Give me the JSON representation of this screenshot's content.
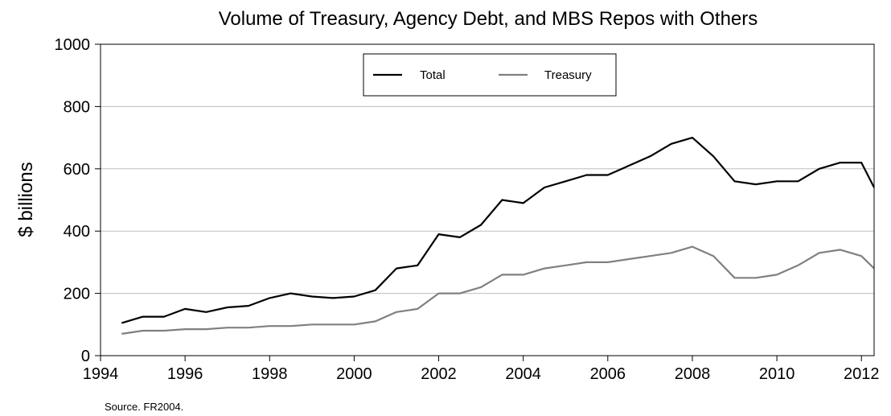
{
  "chart_data": {
    "type": "line",
    "title": "Volume of Treasury, Agency Debt, and MBS Repos with Others",
    "xlabel": "",
    "ylabel": "$ billions",
    "xlim": [
      1994.0,
      2012.3
    ],
    "ylim": [
      0,
      1000
    ],
    "x_ticks": [
      "1994",
      "1996",
      "1998",
      "2000",
      "2002",
      "2004",
      "2006",
      "2008",
      "2010",
      "2012"
    ],
    "y_ticks": [
      "0",
      "200",
      "400",
      "600",
      "800",
      "1000"
    ],
    "grid": "horizontal",
    "legend_position": "top-center",
    "series": [
      {
        "name": "Total",
        "color": "#000000",
        "x": [
          1994.5,
          1995.0,
          1995.5,
          1996.0,
          1996.5,
          1997.0,
          1997.5,
          1998.0,
          1998.5,
          1999.0,
          1999.5,
          2000.0,
          2000.5,
          2001.0,
          2001.5,
          2002.0,
          2002.5,
          2003.0,
          2003.5,
          2004.0,
          2004.5,
          2005.0,
          2005.5,
          2006.0,
          2006.5,
          2007.0,
          2007.5,
          2008.0,
          2008.5,
          2009.0,
          2009.5,
          2010.0,
          2010.5,
          2011.0,
          2011.5,
          2012.0,
          2012.3
        ],
        "y": [
          105,
          125,
          125,
          150,
          140,
          155,
          160,
          185,
          200,
          190,
          185,
          190,
          210,
          280,
          290,
          390,
          380,
          420,
          500,
          490,
          540,
          560,
          580,
          580,
          610,
          640,
          680,
          700,
          640,
          560,
          550,
          560,
          560,
          600,
          620,
          620,
          540
        ]
      },
      {
        "name": "Treasury",
        "color": "#808080",
        "x": [
          1994.5,
          1995.0,
          1995.5,
          1996.0,
          1996.5,
          1997.0,
          1997.5,
          1998.0,
          1998.5,
          1999.0,
          1999.5,
          2000.0,
          2000.5,
          2001.0,
          2001.5,
          2002.0,
          2002.5,
          2003.0,
          2003.5,
          2004.0,
          2004.5,
          2005.0,
          2005.5,
          2006.0,
          2006.5,
          2007.0,
          2007.5,
          2008.0,
          2008.5,
          2009.0,
          2009.5,
          2010.0,
          2010.5,
          2011.0,
          2011.5,
          2012.0,
          2012.3
        ],
        "y": [
          70,
          80,
          80,
          85,
          85,
          90,
          90,
          95,
          95,
          100,
          100,
          100,
          110,
          140,
          150,
          200,
          200,
          220,
          260,
          260,
          280,
          290,
          300,
          300,
          310,
          320,
          330,
          350,
          320,
          250,
          250,
          260,
          290,
          330,
          340,
          320,
          280
        ]
      }
    ],
    "note": "Source. FR2004."
  }
}
